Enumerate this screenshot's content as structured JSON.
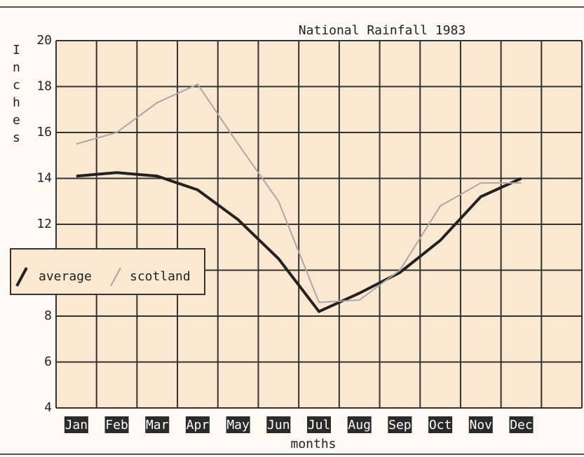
{
  "chart_data": {
    "type": "line",
    "title": "National Rainfall 1983",
    "ylabel": "Inches",
    "xlabel": "months",
    "categories": [
      "Jan",
      "Feb",
      "Mar",
      "Apr",
      "May",
      "Jun",
      "Jul",
      "Aug",
      "Sep",
      "Oct",
      "Nov",
      "Dec"
    ],
    "series": [
      {
        "name": "average",
        "color": "#222222",
        "values": [
          14.1,
          14.25,
          14.1,
          13.5,
          12.2,
          10.5,
          8.2,
          9.0,
          9.9,
          11.3,
          13.2,
          14.0
        ]
      },
      {
        "name": "scotland",
        "color": "#a8a8a8",
        "values": [
          15.5,
          16.0,
          17.3,
          18.1,
          15.5,
          13.0,
          8.6,
          8.7,
          10.0,
          12.8,
          13.8,
          13.8
        ]
      }
    ],
    "ylim": [
      4,
      20
    ],
    "yticks": [
      4,
      6,
      8,
      10,
      12,
      14,
      16,
      18,
      20
    ],
    "grid": true,
    "legend": "left"
  }
}
